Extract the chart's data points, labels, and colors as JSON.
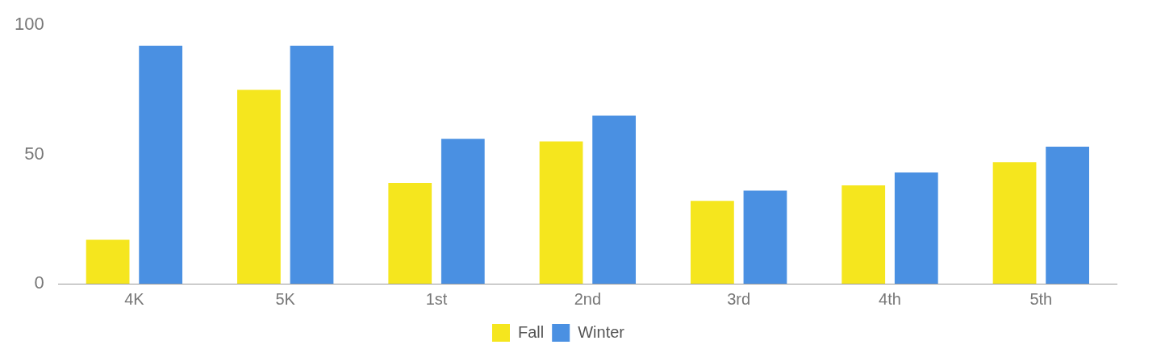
{
  "chart_data": {
    "type": "bar",
    "categories": [
      "4K",
      "5K",
      "1st",
      "2nd",
      "3rd",
      "4th",
      "5th"
    ],
    "series": [
      {
        "name": "Fall",
        "color": "#f5e61e",
        "values": [
          17,
          75,
          39,
          55,
          32,
          38,
          47
        ]
      },
      {
        "name": "Winter",
        "color": "#4a90e2",
        "values": [
          92,
          92,
          56,
          65,
          36,
          43,
          53
        ]
      }
    ],
    "ylim": [
      0,
      100
    ],
    "yticks": [
      0,
      50,
      100
    ],
    "grid": false,
    "legend": "bottom"
  }
}
